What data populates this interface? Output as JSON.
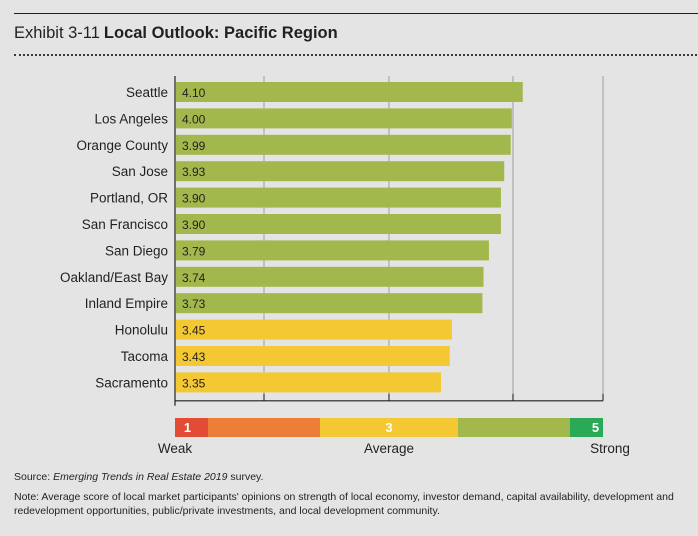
{
  "header": {
    "exhibit_label": "Exhibit 3-11",
    "title": "Local Outlook: Pacific Region"
  },
  "chart_data": {
    "type": "bar",
    "orientation": "horizontal",
    "title": "Local Outlook: Pacific Region",
    "categories": [
      "Seattle",
      "Los Angeles",
      "Orange County",
      "San Jose",
      "Portland, OR",
      "San Francisco",
      "San Diego",
      "Oakland/East Bay",
      "Inland Empire",
      "Honolulu",
      "Tacoma",
      "Sacramento"
    ],
    "values": [
      4.1,
      4.0,
      3.99,
      3.93,
      3.9,
      3.9,
      3.79,
      3.74,
      3.73,
      3.45,
      3.43,
      3.35
    ],
    "value_labels": [
      "4.10",
      "4.00",
      "3.99",
      "3.93",
      "3.90",
      "3.90",
      "3.79",
      "3.74",
      "3.73",
      "3.45",
      "3.43",
      "3.35"
    ],
    "bar_colors": {
      "green": "#a3b84c",
      "yellow": "#f4c832"
    },
    "color_threshold": 3.5,
    "xlim": [
      1,
      5
    ],
    "grid": true,
    "xlabel": "",
    "ylabel": "",
    "scale_legend": {
      "segments": [
        {
          "label": "1",
          "color": "#e24c35"
        },
        {
          "label": "",
          "color": "#ec7e37"
        },
        {
          "label": "3",
          "color": "#f4c832"
        },
        {
          "label": "",
          "color": "#a3b84c"
        },
        {
          "label": "5",
          "color": "#2aa957"
        }
      ],
      "low_label": "Weak",
      "mid_label": "Average",
      "high_label": "Strong"
    }
  },
  "footer": {
    "source_prefix": "Source: ",
    "source_italic": "Emerging Trends in Real Estate 2019",
    "source_suffix": " survey.",
    "note": "Note: Average score of local market participants' opinions on strength of local economy, investor demand, capital availability, development and redevelopment opportunities, public/private investments, and local development community."
  }
}
